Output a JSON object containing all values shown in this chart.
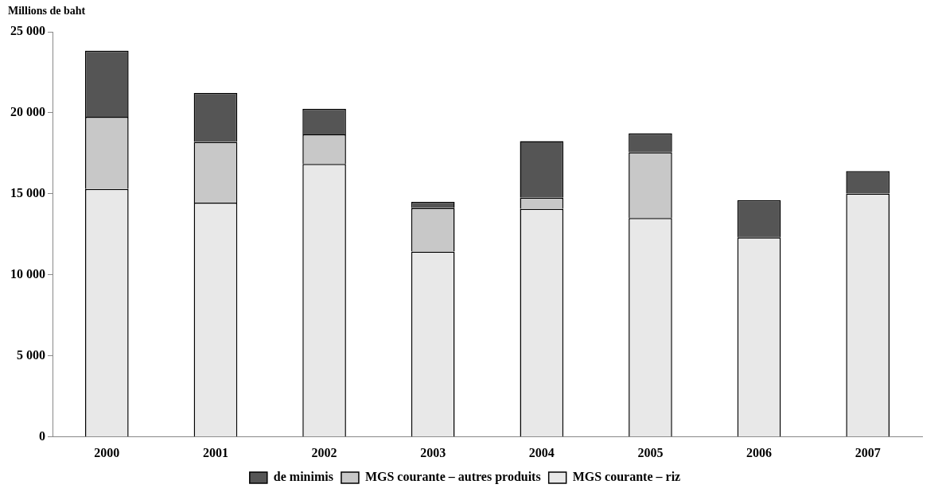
{
  "chart_data": {
    "type": "bar",
    "ylabel": "Millions de baht",
    "categories": [
      "2000",
      "2001",
      "2002",
      "2003",
      "2004",
      "2005",
      "2006",
      "2007"
    ],
    "stacked": true,
    "series": [
      {
        "name": "MGS courante – riz",
        "color": "#e8e8e8",
        "values": [
          15300,
          14460,
          16850,
          11440,
          14080,
          13510,
          12310,
          15020
        ]
      },
      {
        "name": "MGS courante – autres produits",
        "color": "#c8c8c8",
        "values": [
          4450,
          3750,
          1830,
          2690,
          680,
          4060,
          0,
          0
        ]
      },
      {
        "name": "de minimis",
        "color": "#555555",
        "values": [
          4080,
          3020,
          1560,
          370,
          3500,
          1170,
          2300,
          1380
        ]
      }
    ],
    "ylim": [
      0,
      25000
    ],
    "yticks": [
      {
        "value": 0,
        "label": "0"
      },
      {
        "value": 5000,
        "label": "5 000"
      },
      {
        "value": 10000,
        "label": "10 000"
      },
      {
        "value": 15000,
        "label": "15 000"
      },
      {
        "value": 20000,
        "label": "20 000"
      },
      {
        "value": 25000,
        "label": "25 000"
      }
    ],
    "grid": false,
    "legend": "bottom"
  }
}
